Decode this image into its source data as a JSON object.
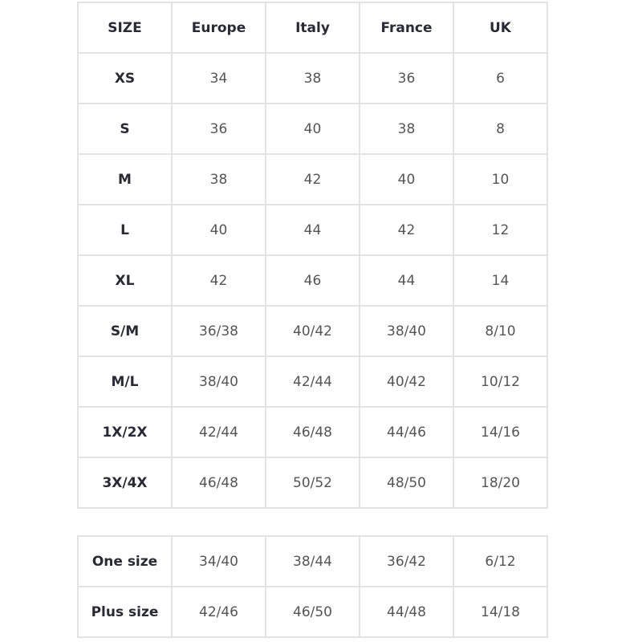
{
  "main_table": {
    "headers": [
      "SIZE",
      "Europe",
      "Italy",
      "France",
      "UK"
    ],
    "rows": [
      [
        "XS",
        "34",
        "38",
        "36",
        "6"
      ],
      [
        "S",
        "36",
        "40",
        "38",
        "8"
      ],
      [
        "M",
        "38",
        "42",
        "40",
        "10"
      ],
      [
        "L",
        "40",
        "44",
        "42",
        "12"
      ],
      [
        "XL",
        "42",
        "46",
        "44",
        "14"
      ],
      [
        "S/M",
        "36/38",
        "40/42",
        "38/40",
        "8/10"
      ],
      [
        "M/L",
        "38/40",
        "42/44",
        "40/42",
        "10/12"
      ],
      [
        "1X/2X",
        "42/44",
        "46/48",
        "44/46",
        "14/16"
      ],
      [
        "3X/4X",
        "46/48",
        "50/52",
        "48/50",
        "18/20"
      ]
    ]
  },
  "special_table": {
    "rows": [
      [
        "One size",
        "34/40",
        "38/44",
        "36/42",
        "6/12"
      ],
      [
        "Plus size",
        "42/46",
        "46/50",
        "44/48",
        "14/18"
      ]
    ]
  }
}
